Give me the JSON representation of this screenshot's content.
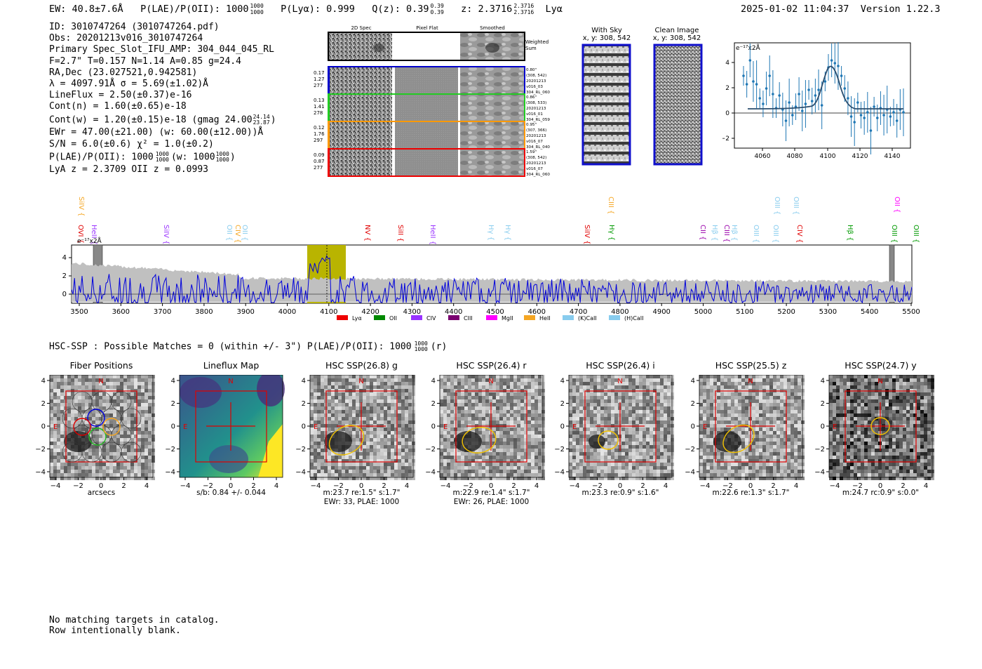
{
  "header": {
    "ew": "EW: 40.8±7.6Å",
    "plae_label": "P(LAE)/P(OII): 1000",
    "plae_hi": "1000",
    "plae_lo": "1000",
    "plya": "P(Lyα): 0.999",
    "qz": "Q(z): 0.39",
    "qz_hi": "0.39",
    "qz_lo": "0.39",
    "z": "z: 2.3716",
    "z_hi": "2.3716",
    "z_lo": "2.3716",
    "z_line": "Lyα",
    "timestamp": "2025-01-02 11:04:37",
    "version": "Version 1.22.3"
  },
  "info": {
    "id": "ID: 3010747264 (3010747264.pdf)",
    "obs": "Obs: 20201213v016_3010747264",
    "primary": "Primary Spec_Slot_IFU_AMP: 304_044_045_RL",
    "params": "F=2.7\"  T=0.157  N=1.14  A=0.85  g=24.4",
    "radec": "RA,Dec (23.027521,0.942581)",
    "lambda": "λ = 4097.91Å  σ = 5.69(±1.02)Å",
    "lineflux": "LineFlux = 2.50(±0.37)e-16",
    "contn": "Cont(n) = 1.60(±0.65)e-18",
    "contw_main": "Cont(w) = 1.20(±0.15)e-18 (gmag 24.00",
    "contw_hi": "24.14",
    "contw_lo": "23.87",
    "contw_end": ")",
    "ewr": "EWr = 47.00(±21.00) (w: 60.00(±12.00))Å",
    "sn": "S/N = 6.0(±0.6)  χ² = 1.0(±0.2)",
    "plae_main": "P(LAE)/P(OII): 1000",
    "plae_hi": "1000",
    "plae_lo": "1000",
    "plae_w": "(w: 1000",
    "plae_w_hi": "1000",
    "plae_w_lo": "1000",
    "plae_end": ")",
    "lya_z": "LyA z = 2.3709  OII z = 0.0993"
  },
  "stamps": {
    "headers": [
      "2D Spec",
      "Pixel Flat",
      "Smoothed"
    ],
    "weighted": "Weighted\nSum",
    "rows": [
      {
        "left": [
          "0.17",
          "1.27",
          "277"
        ],
        "right": [
          "0.80\"",
          "(308, 542)",
          "20201213",
          "v016_03",
          "304_RL_060"
        ],
        "color": "#0000cc"
      },
      {
        "left": [
          "0.13",
          "1.41",
          "278"
        ],
        "right": [
          "0.86\"",
          "(308, 533)",
          "20201213",
          "v016_01",
          "304_RL_059"
        ],
        "color": "#22cc22"
      },
      {
        "left": [
          "0.12",
          "1.76",
          "297"
        ],
        "right": [
          "0.95\"",
          "(307, 366)",
          "20201213",
          "v016_07",
          "304_RL_040"
        ],
        "color": "#ff9900"
      },
      {
        "left": [
          "0.09",
          "0.87",
          "277"
        ],
        "right": [
          "1.59\"",
          "(308, 542)",
          "20201213",
          "v016_07",
          "304_RL_060"
        ],
        "color": "#ee0000"
      }
    ]
  },
  "sky": {
    "with_sky_title": "With Sky",
    "with_sky_xy": "x, y: 308, 542",
    "clean_title": "Clean Image",
    "clean_xy": "x, y: 308, 542"
  },
  "fit_plot": {
    "unit": "e⁻¹⁷x2Å",
    "xticks": [
      "4060",
      "4080",
      "4100",
      "4120",
      "4140"
    ],
    "yticks": [
      "4",
      "2",
      "0",
      "−2"
    ]
  },
  "spectrum": {
    "unit": "e⁻¹⁷x2Å",
    "xticks": [
      "3500",
      "3600",
      "3700",
      "3800",
      "3900",
      "4000",
      "4100",
      "4200",
      "4300",
      "4400",
      "4500",
      "4600",
      "4700",
      "4800",
      "4900",
      "5000",
      "5100",
      "5200",
      "5300",
      "5400",
      "5500"
    ],
    "yticks": [
      "4",
      "2",
      "0"
    ],
    "lines_low": [
      {
        "name": "OVI",
        "x": 107,
        "color": "#e00000"
      },
      {
        "name": "HeII",
        "x": 126,
        "color": "#9933ff"
      },
      {
        "name": "SiIV",
        "x": 229,
        "color": "#9933ff"
      },
      {
        "name": "OII",
        "x": 319,
        "color": "#88ccee"
      },
      {
        "name": "CIV",
        "x": 331,
        "color": "#f5a623"
      },
      {
        "name": "OII",
        "x": 341,
        "color": "#88ccee"
      },
      {
        "name": "NV",
        "x": 516,
        "color": "#e00000"
      },
      {
        "name": "SiII",
        "x": 563,
        "color": "#e00000"
      },
      {
        "name": "HeII",
        "x": 609,
        "color": "#9933ff"
      },
      {
        "name": "Hγ",
        "x": 692,
        "color": "#88ccee"
      },
      {
        "name": "Hγ",
        "x": 716,
        "color": "#88ccee"
      },
      {
        "name": "SiIV",
        "x": 829,
        "color": "#e00000"
      },
      {
        "name": "Hγ",
        "x": 864,
        "color": "#009900"
      },
      {
        "name": "CII",
        "x": 994,
        "color": "#9900aa"
      },
      {
        "name": "Hβ",
        "x": 1011,
        "color": "#88ccee"
      },
      {
        "name": "CIII",
        "x": 1028,
        "color": "#9900aa"
      },
      {
        "name": "Hβ",
        "x": 1039,
        "color": "#88ccee"
      },
      {
        "name": "OIII",
        "x": 1070,
        "color": "#88ccee"
      },
      {
        "name": "OIII",
        "x": 1098,
        "color": "#88ccee"
      },
      {
        "name": "CIV",
        "x": 1132,
        "color": "#e00000"
      },
      {
        "name": "Hβ",
        "x": 1204,
        "color": "#009900"
      },
      {
        "name": "OIII",
        "x": 1267,
        "color": "#009900"
      },
      {
        "name": "OIII",
        "x": 1298,
        "color": "#009900"
      }
    ],
    "lines_high": [
      {
        "name": "SiIV",
        "x": 108,
        "color": "#f5a623"
      },
      {
        "name": "CIII",
        "x": 863,
        "color": "#f5a623"
      },
      {
        "name": "OIII",
        "x": 1100,
        "color": "#88ccee"
      },
      {
        "name": "OIII",
        "x": 1127,
        "color": "#88ccee"
      },
      {
        "name": "OII",
        "x": 1271,
        "color": "#ff00ff"
      }
    ],
    "legend": [
      {
        "label": "Lyα",
        "color": "#ee0000"
      },
      {
        "label": "OII",
        "color": "#008800"
      },
      {
        "label": "CIV",
        "color": "#9933ff"
      },
      {
        "label": "CIII",
        "color": "#7a0070"
      },
      {
        "label": "MgII",
        "color": "#ff00ff"
      },
      {
        "label": "HeII",
        "color": "#f5a623"
      },
      {
        "label": "(K)CaII",
        "color": "#88ccee"
      },
      {
        "label": "(H)CaII",
        "color": "#88ccee"
      }
    ]
  },
  "hsc": {
    "line_main": "HSC-SSP : Possible Matches = 0 (within +/- 3\")  P(LAE)/P(OII): 1000",
    "line_hi": "1000",
    "line_lo": "1000",
    "line_end": "(r)"
  },
  "cutouts": [
    {
      "title": "Fiber Positions",
      "cap1": "arcsecs",
      "cap2": ""
    },
    {
      "title": "Lineflux Map",
      "cap1": "s/b: 0.84 +/- 0.044",
      "cap2": ""
    },
    {
      "title": "HSC SSP(26.8) g",
      "cap1": "m:23.7  re:1.5\"  s:1.7\"",
      "cap2": "EWr: 33, PLAE: 1000"
    },
    {
      "title": "HSC SSP(26.4) r",
      "cap1": "m:22.9  re:1.4\"  s:1.7\"",
      "cap2": "EWr: 26, PLAE: 1000"
    },
    {
      "title": "HSC SSP(26.4) i",
      "cap1": "m:23.3  re:0.9\"  s:1.6\"",
      "cap2": ""
    },
    {
      "title": "HSC SSP(25.5) z",
      "cap1": "m:22.6  re:1.3\"  s:1.7\"",
      "cap2": ""
    },
    {
      "title": "HSC SSP(24.7) y",
      "cap1": "m:24.7  rc:0.9\"  s:0.0\"",
      "cap2": ""
    }
  ],
  "cutout_axes": {
    "ticks": [
      "4",
      "2",
      "0",
      "−2",
      "−4"
    ],
    "xticks": [
      "−4",
      "−2",
      "0",
      "2",
      "4"
    ],
    "north": "N",
    "east": "E"
  },
  "footer": {
    "line1": "No matching targets in catalog.",
    "line2": "Row intentionally blank."
  }
}
